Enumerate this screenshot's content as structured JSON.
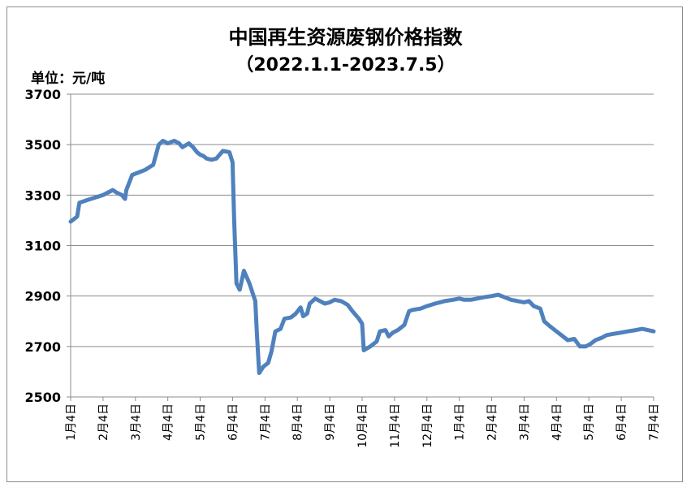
{
  "chart_data": {
    "type": "line",
    "title": "中国再生资源废钢价格指数",
    "subtitle": "（2022.1.1-2023.7.5）",
    "unit_label": "单位：元/吨",
    "ylim": [
      2500,
      3700
    ],
    "yticks": [
      2500,
      2700,
      2900,
      3100,
      3300,
      3500,
      3700
    ],
    "categories": [
      "1月4日",
      "2月4日",
      "3月4日",
      "4月4日",
      "5月4日",
      "6月4日",
      "7月4日",
      "8月4日",
      "9月4日",
      "10月4日",
      "11月4日",
      "12月4日",
      "1月4日",
      "2月4日",
      "3月4日",
      "4月4日",
      "5月4日",
      "6月4日",
      "7月4日"
    ],
    "grid": true,
    "legend": "none",
    "line_color": "#4f81bd",
    "series": [
      {
        "values": [
          [
            0,
            3195
          ],
          [
            0.2,
            3215
          ],
          [
            0.27,
            3270
          ],
          [
            0.5,
            3280
          ],
          [
            1.0,
            3300
          ],
          [
            1.3,
            3320
          ],
          [
            1.42,
            3310
          ],
          [
            1.58,
            3300
          ],
          [
            1.68,
            3285
          ],
          [
            1.72,
            3320
          ],
          [
            1.9,
            3380
          ],
          [
            2.0,
            3385
          ],
          [
            2.1,
            3390
          ],
          [
            2.3,
            3400
          ],
          [
            2.55,
            3420
          ],
          [
            2.72,
            3500
          ],
          [
            2.85,
            3515
          ],
          [
            3.0,
            3505
          ],
          [
            3.2,
            3515
          ],
          [
            3.35,
            3505
          ],
          [
            3.45,
            3490
          ],
          [
            3.65,
            3505
          ],
          [
            3.78,
            3490
          ],
          [
            3.9,
            3470
          ],
          [
            4.0,
            3460
          ],
          [
            4.1,
            3455
          ],
          [
            4.2,
            3445
          ],
          [
            4.35,
            3440
          ],
          [
            4.5,
            3445
          ],
          [
            4.7,
            3475
          ],
          [
            4.9,
            3470
          ],
          [
            5.0,
            3430
          ],
          [
            5.05,
            3200
          ],
          [
            5.12,
            2950
          ],
          [
            5.22,
            2925
          ],
          [
            5.35,
            3000
          ],
          [
            5.52,
            2950
          ],
          [
            5.7,
            2880
          ],
          [
            5.75,
            2750
          ],
          [
            5.82,
            2595
          ],
          [
            5.95,
            2620
          ],
          [
            6.1,
            2635
          ],
          [
            6.2,
            2680
          ],
          [
            6.32,
            2760
          ],
          [
            6.48,
            2770
          ],
          [
            6.6,
            2810
          ],
          [
            6.8,
            2815
          ],
          [
            6.95,
            2830
          ],
          [
            7.1,
            2855
          ],
          [
            7.18,
            2820
          ],
          [
            7.3,
            2830
          ],
          [
            7.38,
            2870
          ],
          [
            7.55,
            2890
          ],
          [
            7.7,
            2880
          ],
          [
            7.85,
            2870
          ],
          [
            8.0,
            2875
          ],
          [
            8.15,
            2885
          ],
          [
            8.35,
            2880
          ],
          [
            8.55,
            2865
          ],
          [
            8.7,
            2840
          ],
          [
            8.9,
            2810
          ],
          [
            9.0,
            2790
          ],
          [
            9.05,
            2685
          ],
          [
            9.25,
            2700
          ],
          [
            9.45,
            2720
          ],
          [
            9.55,
            2760
          ],
          [
            9.72,
            2765
          ],
          [
            9.82,
            2740
          ],
          [
            9.95,
            2755
          ],
          [
            10.1,
            2765
          ],
          [
            10.3,
            2785
          ],
          [
            10.45,
            2840
          ],
          [
            10.55,
            2845
          ],
          [
            10.8,
            2850
          ],
          [
            11.0,
            2860
          ],
          [
            11.25,
            2870
          ],
          [
            11.55,
            2880
          ],
          [
            11.8,
            2885
          ],
          [
            12.0,
            2890
          ],
          [
            12.15,
            2885
          ],
          [
            12.35,
            2885
          ],
          [
            12.55,
            2890
          ],
          [
            12.75,
            2895
          ],
          [
            13.0,
            2900
          ],
          [
            13.2,
            2905
          ],
          [
            13.4,
            2895
          ],
          [
            13.6,
            2885
          ],
          [
            13.8,
            2880
          ],
          [
            14.0,
            2875
          ],
          [
            14.15,
            2880
          ],
          [
            14.3,
            2860
          ],
          [
            14.5,
            2850
          ],
          [
            14.62,
            2800
          ],
          [
            14.8,
            2780
          ],
          [
            15.0,
            2760
          ],
          [
            15.2,
            2740
          ],
          [
            15.35,
            2725
          ],
          [
            15.55,
            2730
          ],
          [
            15.72,
            2700
          ],
          [
            15.9,
            2700
          ],
          [
            16.05,
            2710
          ],
          [
            16.2,
            2725
          ],
          [
            16.4,
            2735
          ],
          [
            16.55,
            2745
          ],
          [
            16.75,
            2750
          ],
          [
            17.0,
            2755
          ],
          [
            17.2,
            2760
          ],
          [
            17.45,
            2765
          ],
          [
            17.65,
            2770
          ],
          [
            18.0,
            2760
          ]
        ]
      }
    ]
  }
}
